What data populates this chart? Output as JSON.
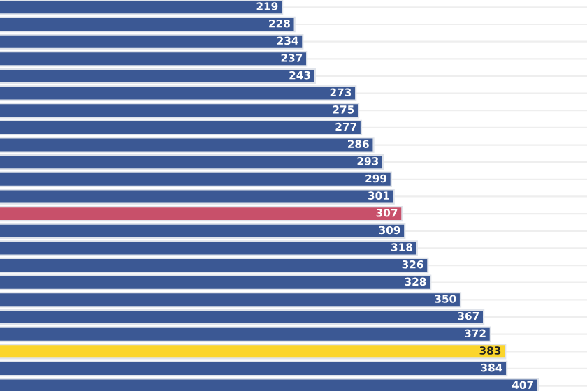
{
  "chart_data": {
    "type": "bar",
    "orientation": "horizontal",
    "categories": [
      null,
      null,
      null,
      null,
      null,
      null,
      null,
      null,
      null,
      null,
      null,
      null,
      null,
      null,
      null,
      null,
      null,
      null,
      null,
      null,
      null,
      null,
      null
    ],
    "values": [
      219,
      228,
      234,
      237,
      243,
      273,
      275,
      277,
      286,
      293,
      299,
      301,
      307,
      309,
      318,
      326,
      328,
      350,
      367,
      372,
      383,
      384,
      407
    ],
    "colors": [
      "#3b5894",
      "#3b5894",
      "#3b5894",
      "#3b5894",
      "#3b5894",
      "#3b5894",
      "#3b5894",
      "#3b5894",
      "#3b5894",
      "#3b5894",
      "#3b5894",
      "#3b5894",
      "#c8506a",
      "#3b5894",
      "#3b5894",
      "#3b5894",
      "#3b5894",
      "#3b5894",
      "#3b5894",
      "#3b5894",
      "#fbd52b",
      "#3b5894",
      "#3b5894"
    ],
    "xlim": [
      0,
      443
    ],
    "data_labels": true,
    "grid": "y"
  }
}
